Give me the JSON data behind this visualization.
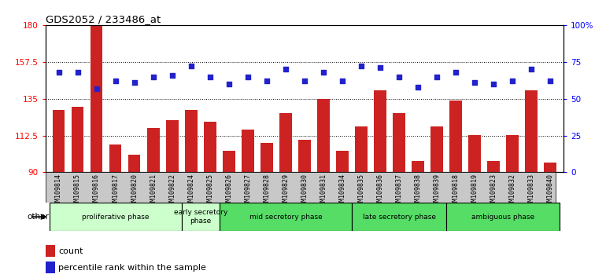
{
  "title": "GDS2052 / 233486_at",
  "samples": [
    "GSM109814",
    "GSM109815",
    "GSM109816",
    "GSM109817",
    "GSM109820",
    "GSM109821",
    "GSM109822",
    "GSM109824",
    "GSM109825",
    "GSM109826",
    "GSM109827",
    "GSM109828",
    "GSM109829",
    "GSM109830",
    "GSM109831",
    "GSM109834",
    "GSM109835",
    "GSM109836",
    "GSM109837",
    "GSM109838",
    "GSM109839",
    "GSM109818",
    "GSM109819",
    "GSM109823",
    "GSM109832",
    "GSM109833",
    "GSM109840"
  ],
  "bar_values": [
    128,
    130,
    180,
    107,
    101,
    117,
    122,
    128,
    121,
    103,
    116,
    108,
    126,
    110,
    135,
    103,
    118,
    140,
    126,
    97,
    118,
    134,
    113,
    97,
    113,
    140,
    96
  ],
  "dot_values": [
    68,
    68,
    57,
    62,
    61,
    65,
    66,
    72,
    65,
    60,
    65,
    62,
    70,
    62,
    68,
    62,
    72,
    71,
    65,
    58,
    65,
    68,
    61,
    60,
    62,
    70,
    62
  ],
  "bar_color": "#cc2222",
  "dot_color": "#2222cc",
  "ylim_left": [
    90,
    180
  ],
  "ylim_right": [
    0,
    100
  ],
  "yticks_left": [
    90,
    112.5,
    135,
    157.5,
    180
  ],
  "yticks_right": [
    0,
    25,
    50,
    75,
    100
  ],
  "ytick_labels_left": [
    "90",
    "112.5",
    "135",
    "157.5",
    "180"
  ],
  "ytick_labels_right": [
    "0",
    "25",
    "50",
    "75",
    "100%"
  ],
  "phase_defs": [
    {
      "label": "proliferative phase",
      "start": 0,
      "end": 7,
      "color": "#ccffcc"
    },
    {
      "label": "early secretory\nphase",
      "start": 7,
      "end": 9,
      "color": "#ccffcc"
    },
    {
      "label": "mid secretory phase",
      "start": 9,
      "end": 16,
      "color": "#55dd66"
    },
    {
      "label": "late secretory phase",
      "start": 16,
      "end": 21,
      "color": "#55dd66"
    },
    {
      "label": "ambiguous phase",
      "start": 21,
      "end": 27,
      "color": "#55dd66"
    }
  ],
  "tick_bg_color": "#c8c8c8",
  "other_label": "other",
  "legend_count_label": "count",
  "legend_percentile_label": "percentile rank within the sample"
}
